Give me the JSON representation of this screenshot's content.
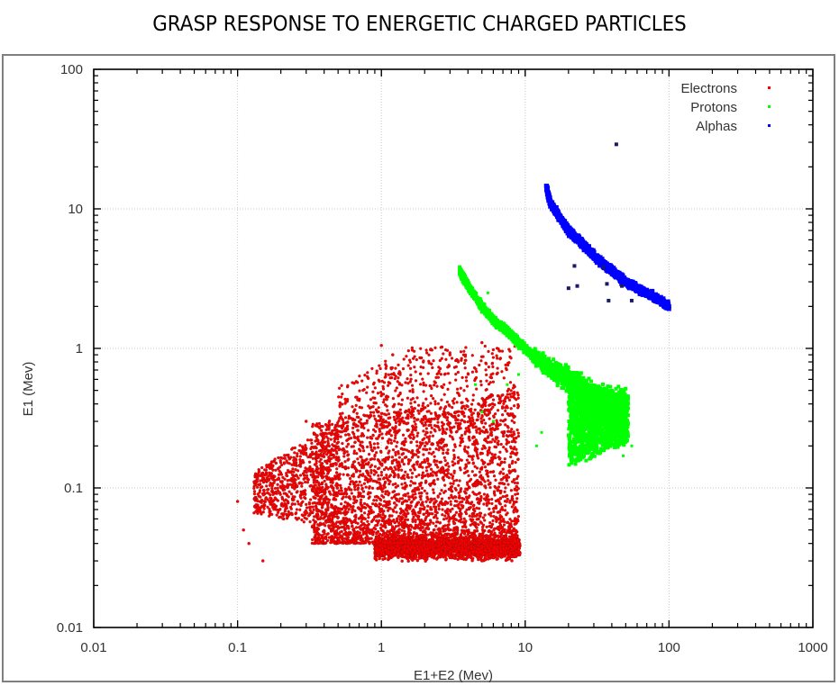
{
  "title": "GRASP RESPONSE TO ENERGETIC CHARGED PARTICLES",
  "chart_data": {
    "type": "scatter",
    "title": "GRASP RESPONSE TO ENERGETIC CHARGED PARTICLES",
    "xlabel": "E1+E2 (Mev)",
    "ylabel": "E1 (Mev)",
    "xscale": "log",
    "yscale": "log",
    "xlim": [
      0.01,
      1000
    ],
    "ylim": [
      0.01,
      100
    ],
    "xticks": [
      "0.01",
      "0.1",
      "1",
      "10",
      "100",
      "1000"
    ],
    "yticks": [
      "0.01",
      "0.1",
      "1",
      "10",
      "100"
    ],
    "grid": true,
    "legend_position": "upper right",
    "series": [
      {
        "name": "Electrons",
        "color": "#ff0000",
        "marker": "dot",
        "description": "Dense cloud; E1+E2 from ~0.1 to ~9 MeV, E1 from ~0.03 to ~1 MeV; densest band at E1≈0.03–0.05 MeV for E1+E2≈1–9 MeV",
        "regions": [
          {
            "x_range": [
              1.0,
              9.0
            ],
            "y_range": [
              0.025,
              0.055
            ],
            "density": "very high"
          },
          {
            "x_range": [
              0.35,
              9.0
            ],
            "y_range": [
              0.04,
              0.3
            ],
            "density": "high"
          },
          {
            "x_range": [
              0.12,
              0.6
            ],
            "y_range": [
              0.06,
              0.3
            ],
            "density": "medium"
          },
          {
            "x_range": [
              0.5,
              8.0
            ],
            "y_range": [
              0.3,
              1.0
            ],
            "density": "low"
          }
        ],
        "sample_points": [
          [
            0.1,
            0.08
          ],
          [
            0.11,
            0.05
          ],
          [
            0.12,
            0.04
          ],
          [
            0.15,
            0.03
          ],
          [
            0.3,
            0.3
          ],
          [
            0.35,
            0.28
          ],
          [
            1.0,
            1.05
          ],
          [
            1.2,
            0.9
          ],
          [
            3.0,
            0.9
          ],
          [
            5.0,
            1.1
          ],
          [
            8.0,
            0.45
          ],
          [
            9.0,
            0.04
          ],
          [
            3.0,
            0.035
          ],
          [
            2.0,
            0.04
          ],
          [
            5.0,
            0.03
          ]
        ]
      },
      {
        "name": "Protons",
        "color": "#00ff00",
        "marker": "cross",
        "description": "Track from (3.5, 3.5) descending to (~20, ~0.6) then spreading; hook/fan region E1+E2≈20–50 MeV, E1≈0.15–0.5 MeV",
        "track": [
          [
            3.5,
            3.6
          ],
          [
            4.0,
            2.8
          ],
          [
            5.0,
            2.0
          ],
          [
            6.0,
            1.6
          ],
          [
            8.0,
            1.25
          ],
          [
            10.0,
            1.0
          ],
          [
            12.0,
            0.85
          ],
          [
            15.0,
            0.72
          ],
          [
            20.0,
            0.6
          ],
          [
            25.0,
            0.5
          ],
          [
            30.0,
            0.42
          ],
          [
            40.0,
            0.38
          ],
          [
            50.0,
            0.35
          ]
        ],
        "fan": {
          "x_range": [
            20,
            52
          ],
          "y_range": [
            0.13,
            0.5
          ]
        },
        "outliers": [
          [
            5.5,
            2.5
          ],
          [
            4.5,
            0.55
          ],
          [
            5.0,
            0.35
          ],
          [
            6.0,
            0.3
          ],
          [
            7.5,
            0.55
          ],
          [
            9.0,
            0.65
          ],
          [
            13.0,
            0.25
          ],
          [
            12.0,
            0.2
          ],
          [
            48.0,
            0.17
          ],
          [
            55.0,
            0.2
          ]
        ]
      },
      {
        "name": "Alphas",
        "color": "#0000ff",
        "marker": "square",
        "description": "Track from (14, 14) descending to (100, 2)",
        "track": [
          [
            14.0,
            14.5
          ],
          [
            15.0,
            11.0
          ],
          [
            17.0,
            9.0
          ],
          [
            20.0,
            7.0
          ],
          [
            25.0,
            5.6
          ],
          [
            30.0,
            4.6
          ],
          [
            35.0,
            4.0
          ],
          [
            40.0,
            3.6
          ],
          [
            50.0,
            3.0
          ],
          [
            60.0,
            2.7
          ],
          [
            75.0,
            2.4
          ],
          [
            90.0,
            2.15
          ],
          [
            100.0,
            2.0
          ]
        ],
        "outliers": [
          [
            43.0,
            29.0
          ],
          [
            22.0,
            3.9
          ],
          [
            20.0,
            2.7
          ],
          [
            23.0,
            2.8
          ],
          [
            35.0,
            3.8
          ],
          [
            37.0,
            2.9
          ],
          [
            47.0,
            2.8
          ],
          [
            38.0,
            2.2
          ],
          [
            55.0,
            2.2
          ]
        ]
      }
    ]
  },
  "legend": {
    "items": [
      {
        "label": "Electrons",
        "color": "#ff0000"
      },
      {
        "label": "Protons",
        "color": "#00ff00"
      },
      {
        "label": "Alphas",
        "color": "#0000ff"
      }
    ]
  },
  "axes": {
    "x_label": "E1+E2 (Mev)",
    "y_label": "E1 (Mev)",
    "x_ticks": [
      "0.01",
      "0.1",
      "1",
      "10",
      "100",
      "1000"
    ],
    "y_ticks": [
      "100",
      "10",
      "1",
      "0.1",
      "0.01"
    ]
  }
}
